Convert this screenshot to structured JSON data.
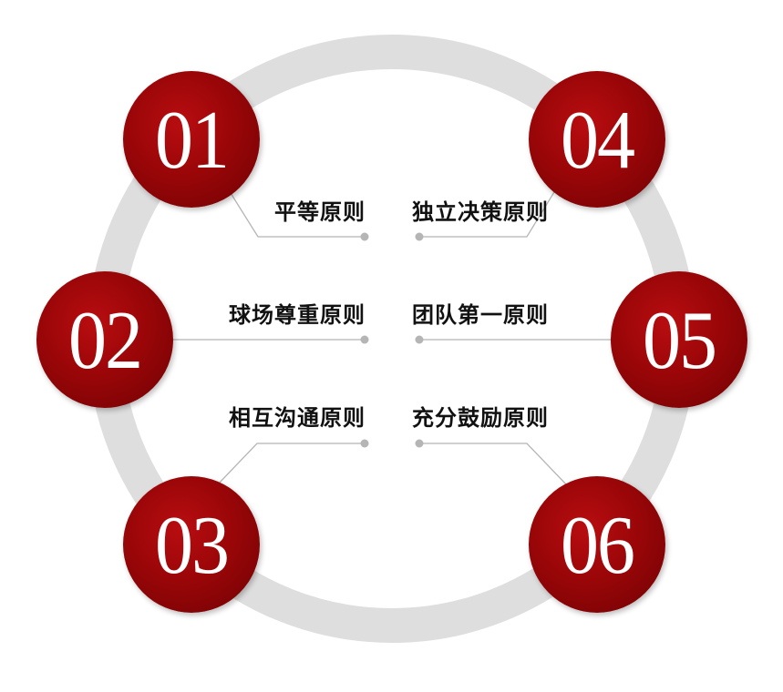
{
  "colors": {
    "ring": "#dedede",
    "badge": "#9a0608",
    "connector": "#b5b5b5"
  },
  "items": [
    {
      "number": "01",
      "label": "平等原则"
    },
    {
      "number": "02",
      "label": "球场尊重原则"
    },
    {
      "number": "03",
      "label": "相互沟通原则"
    },
    {
      "number": "04",
      "label": "独立决策原则"
    },
    {
      "number": "05",
      "label": "团队第一原则"
    },
    {
      "number": "06",
      "label": "充分鼓励原则"
    }
  ]
}
